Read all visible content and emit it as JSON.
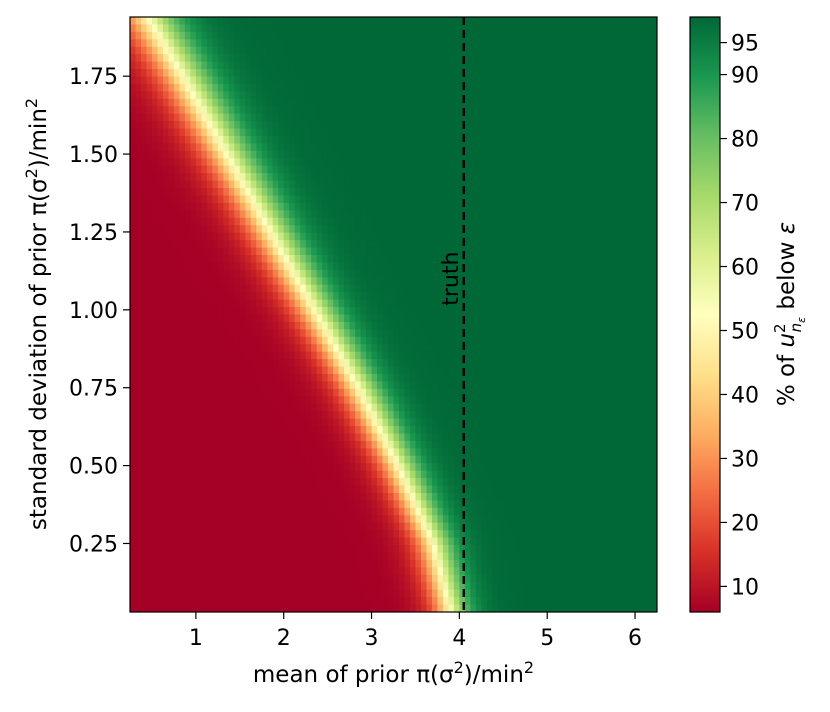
{
  "chart_data": {
    "type": "heatmap",
    "title": "",
    "xlabel": {
      "text": "mean of prior π(σ",
      "sup": "2",
      "tail": ")/min",
      "sup2": "2"
    },
    "ylabel": {
      "text": "standard deviation of prior π(σ",
      "sup": "2",
      "tail": ")/min",
      "sup2": "2"
    },
    "xlim": [
      0.25,
      6.25
    ],
    "ylim": [
      0.03,
      1.94
    ],
    "x_ticks": [
      1,
      2,
      3,
      4,
      5,
      6
    ],
    "x_tick_labels": [
      "1",
      "2",
      "3",
      "4",
      "5",
      "6"
    ],
    "y_ticks": [
      0.25,
      0.5,
      0.75,
      1.0,
      1.25,
      1.5,
      1.75
    ],
    "y_tick_labels": [
      "0.25",
      "0.50",
      "0.75",
      "1.00",
      "1.25",
      "1.50",
      "1.75"
    ],
    "colorbar": {
      "label": {
        "pre": "% of ",
        "var": "u",
        "sup": "2",
        "sub": "n",
        "subsub": "ε",
        "post": " below ",
        "eps": "ε"
      },
      "range": [
        6,
        99
      ],
      "ticks": [
        10,
        20,
        30,
        40,
        50,
        60,
        70,
        80,
        90,
        95
      ],
      "tick_labels": [
        "10",
        "20",
        "30",
        "40",
        "50",
        "60",
        "70",
        "80",
        "90",
        "95"
      ],
      "colormap": "RdYlGn",
      "stops": [
        {
          "v": 0.0,
          "color": "#a50026"
        },
        {
          "v": 0.1,
          "color": "#d73027"
        },
        {
          "v": 0.2,
          "color": "#f46d43"
        },
        {
          "v": 0.3,
          "color": "#fdae61"
        },
        {
          "v": 0.4,
          "color": "#fee08b"
        },
        {
          "v": 0.5,
          "color": "#ffffbf"
        },
        {
          "v": 0.6,
          "color": "#d9ef8b"
        },
        {
          "v": 0.7,
          "color": "#a6d96a"
        },
        {
          "v": 0.8,
          "color": "#66bd63"
        },
        {
          "v": 0.9,
          "color": "#1a9850"
        },
        {
          "v": 1.0,
          "color": "#006837"
        }
      ]
    },
    "transition_boundary": [
      {
        "sd": 0.03,
        "mean_at_60pct": 3.9
      },
      {
        "sd": 0.25,
        "mean_at_60pct": 3.7
      },
      {
        "sd": 0.5,
        "mean_at_60pct": 3.3
      },
      {
        "sd": 0.75,
        "mean_at_60pct": 2.85
      },
      {
        "sd": 1.0,
        "mean_at_60pct": 2.35
      },
      {
        "sd": 1.25,
        "mean_at_60pct": 1.85
      },
      {
        "sd": 1.5,
        "mean_at_60pct": 1.35
      },
      {
        "sd": 1.75,
        "mean_at_60pct": 0.85
      },
      {
        "sd": 1.94,
        "mean_at_60pct": 0.45
      }
    ],
    "reference_line": {
      "label": "truth",
      "x": 4.05,
      "style": "dashed",
      "color": "#000000"
    }
  }
}
